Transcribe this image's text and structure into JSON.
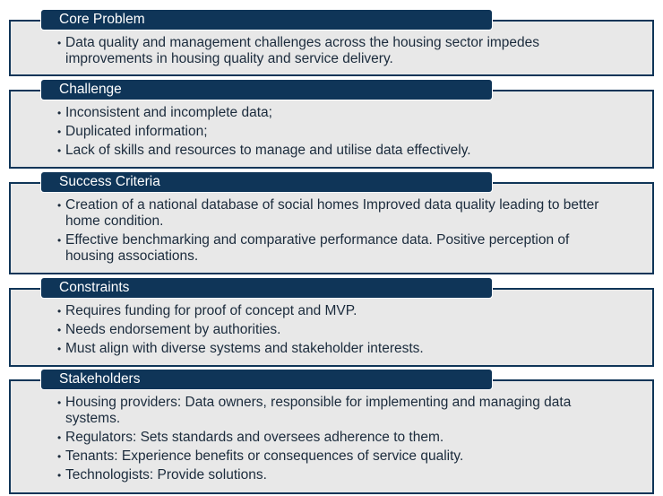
{
  "colors": {
    "accent": "#0f3558",
    "panel": "#e8e8e8"
  },
  "sections": [
    {
      "title": "Core Problem",
      "items": [
        "Data quality and management challenges across the housing sector impedes improvements in housing quality and service delivery."
      ]
    },
    {
      "title": "Challenge",
      "items": [
        "Inconsistent and incomplete data;",
        "Duplicated information;",
        "Lack of skills and resources to manage and utilise data effectively."
      ]
    },
    {
      "title": "Success Criteria",
      "items": [
        "Creation of a national database of social homes Improved data quality leading to better home condition.",
        "Effective benchmarking and comparative performance data. Positive perception of housing associations."
      ]
    },
    {
      "title": "Constraints",
      "items": [
        "Requires funding for proof of concept and MVP.",
        "Needs endorsement by authorities.",
        "Must align with diverse systems and stakeholder interests."
      ]
    },
    {
      "title": "Stakeholders",
      "items": [
        "Housing providers: Data owners, responsible for implementing and managing data systems.",
        "Regulators: Sets standards and oversees adherence to them.",
        "Tenants: Experience benefits or consequences of service quality.",
        "Technologists: Provide solutions."
      ]
    }
  ]
}
